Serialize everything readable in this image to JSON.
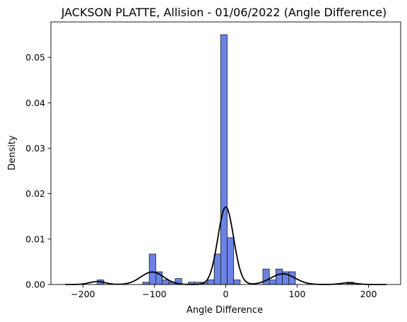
{
  "chart_data": {
    "type": "bar",
    "title": "JACKSON PLATTE, Allision - 01/06/2022 (Angle Difference)",
    "xlabel": "Angle Difference",
    "ylabel": "Density",
    "xlim": [
      -245,
      245
    ],
    "ylim": [
      0,
      0.0578
    ],
    "xticks": [
      -200,
      -100,
      0,
      100,
      200
    ],
    "xtick_labels": [
      "−200",
      "−100",
      "0",
      "100",
      "200"
    ],
    "yticks": [
      0.0,
      0.01,
      0.02,
      0.03,
      0.04,
      0.05
    ],
    "ytick_labels": [
      "0.00",
      "0.01",
      "0.02",
      "0.03",
      "0.04",
      "0.05"
    ],
    "bin_width": 9.1,
    "bar_color": "#6a83e6",
    "bar_edge_color": "#1a1a1a",
    "kde_color": "#000000",
    "grid": false,
    "bins": [
      {
        "x0": -180.0,
        "density": 0.001
      },
      {
        "x0": -116.3,
        "density": 0.0005
      },
      {
        "x0": -107.2,
        "density": 0.0067
      },
      {
        "x0": -98.1,
        "density": 0.0028
      },
      {
        "x0": -89.0,
        "density": 0.001
      },
      {
        "x0": -79.9,
        "density": 0.0005
      },
      {
        "x0": -70.8,
        "density": 0.0013
      },
      {
        "x0": -52.6,
        "density": 0.0005
      },
      {
        "x0": -43.5,
        "density": 0.0005
      },
      {
        "x0": -34.4,
        "density": 0.0005
      },
      {
        "x0": -25.3,
        "density": 0.001
      },
      {
        "x0": -16.2,
        "density": 0.0067
      },
      {
        "x0": -7.1,
        "density": 0.055
      },
      {
        "x0": 2.0,
        "density": 0.0103
      },
      {
        "x0": 11.1,
        "density": 0.001
      },
      {
        "x0": 52.0,
        "density": 0.0034
      },
      {
        "x0": 61.1,
        "density": 0.001
      },
      {
        "x0": 70.2,
        "density": 0.0034
      },
      {
        "x0": 79.3,
        "density": 0.0028
      },
      {
        "x0": 88.4,
        "density": 0.0028
      },
      {
        "x0": 169.6,
        "density": 0.0005
      }
    ],
    "kde": {
      "x_range": [
        -225,
        225
      ],
      "components": [
        {
          "mean": -180,
          "sd": 11,
          "weight": 0.018
        },
        {
          "mean": -103,
          "sd": 16,
          "weight": 0.11
        },
        {
          "mean": 0,
          "sd": 11,
          "weight": 0.47
        },
        {
          "mean": 80,
          "sd": 17,
          "weight": 0.1
        },
        {
          "mean": 172,
          "sd": 11,
          "weight": 0.01
        }
      ]
    }
  }
}
